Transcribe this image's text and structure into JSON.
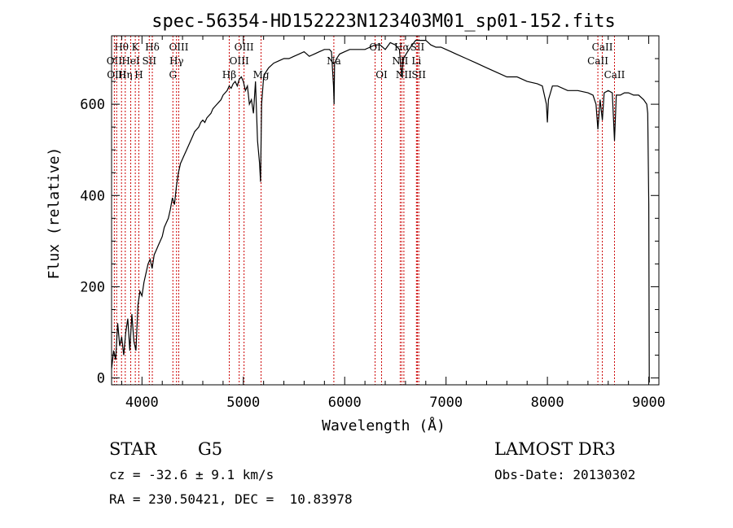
{
  "chart_data": {
    "type": "line",
    "title": "spec-56354-HD152223N123403M01_sp01-152.fits",
    "xlabel": "Wavelength (Å)",
    "ylabel": "Flux (relative)",
    "xlim": [
      3700,
      9100
    ],
    "ylim": [
      -15,
      750
    ],
    "xticks": [
      4000,
      5000,
      6000,
      7000,
      8000,
      9000
    ],
    "yticks": [
      0,
      200,
      400,
      600
    ],
    "line_color": "#000000",
    "marker_color": "#cc0000",
    "series": [
      {
        "x": [
          3700,
          3720,
          3740,
          3760,
          3780,
          3800,
          3820,
          3840,
          3860,
          3880,
          3900,
          3920,
          3940,
          3960,
          3980,
          4000,
          4020,
          4040,
          4060,
          4080,
          4100,
          4120,
          4140,
          4160,
          4180,
          4200,
          4220,
          4240,
          4260,
          4280,
          4300,
          4320,
          4340,
          4360,
          4380,
          4400,
          4420,
          4440,
          4460,
          4480,
          4500,
          4520,
          4540,
          4560,
          4580,
          4600,
          4620,
          4640,
          4660,
          4680,
          4700,
          4720,
          4740,
          4760,
          4780,
          4800,
          4820,
          4840,
          4860,
          4880,
          4900,
          4920,
          4940,
          4960,
          4980,
          5000,
          5020,
          5040,
          5060,
          5080,
          5100,
          5120,
          5140,
          5160,
          5170,
          5180,
          5200,
          5220,
          5250,
          5300,
          5350,
          5400,
          5450,
          5500,
          5550,
          5600,
          5650,
          5700,
          5750,
          5800,
          5850,
          5870,
          5890,
          5895,
          5900,
          5920,
          5950,
          6000,
          6050,
          6100,
          6150,
          6200,
          6250,
          6300,
          6350,
          6400,
          6450,
          6500,
          6540,
          6563,
          6580,
          6620,
          6650,
          6700,
          6750,
          6800,
          6850,
          6900,
          6950,
          7000,
          7050,
          7100,
          7200,
          7300,
          7400,
          7500,
          7600,
          7700,
          7800,
          7900,
          7950,
          7990,
          8000,
          8010,
          8050,
          8100,
          8200,
          8300,
          8400,
          8450,
          8480,
          8498,
          8520,
          8542,
          8560,
          8600,
          8640,
          8662,
          8680,
          8720,
          8760,
          8800,
          8850,
          8900,
          8950,
          8980,
          8990,
          9000,
          9005
        ],
        "y": [
          20,
          60,
          40,
          120,
          70,
          90,
          50,
          100,
          130,
          60,
          140,
          80,
          60,
          160,
          190,
          180,
          210,
          230,
          250,
          260,
          240,
          270,
          280,
          290,
          300,
          310,
          330,
          340,
          350,
          370,
          395,
          380,
          420,
          450,
          470,
          480,
          490,
          500,
          510,
          520,
          530,
          540,
          545,
          550,
          560,
          565,
          560,
          570,
          575,
          580,
          590,
          595,
          600,
          605,
          610,
          620,
          625,
          630,
          640,
          635,
          645,
          650,
          640,
          655,
          660,
          650,
          630,
          640,
          600,
          610,
          580,
          650,
          520,
          470,
          430,
          600,
          660,
          670,
          680,
          690,
          695,
          700,
          700,
          705,
          710,
          715,
          705,
          710,
          715,
          720,
          720,
          715,
          640,
          600,
          690,
          700,
          710,
          715,
          720,
          720,
          720,
          720,
          725,
          730,
          730,
          720,
          735,
          730,
          720,
          660,
          700,
          715,
          725,
          740,
          740,
          740,
          730,
          725,
          725,
          720,
          715,
          710,
          700,
          690,
          680,
          670,
          660,
          660,
          650,
          645,
          640,
          600,
          560,
          610,
          640,
          640,
          630,
          630,
          625,
          620,
          600,
          545,
          610,
          565,
          625,
          630,
          625,
          520,
          620,
          620,
          625,
          625,
          620,
          620,
          610,
          600,
          580,
          380,
          -10
        ]
      }
    ],
    "line_markers": [
      {
        "label": "Hθ",
        "x": 3798,
        "row": 1
      },
      {
        "label": "OII",
        "x": 3727,
        "row": 2
      },
      {
        "label": "OIII",
        "x": 3750,
        "row": 3
      },
      {
        "label": "HeI",
        "x": 3889,
        "row": 2
      },
      {
        "label": "Hη",
        "x": 3835,
        "row": 3
      },
      {
        "label": "K",
        "x": 3934,
        "row": 1
      },
      {
        "label": "H",
        "x": 3969,
        "row": 3
      },
      {
        "label": "SII",
        "x": 4072,
        "row": 2
      },
      {
        "label": "Hδ",
        "x": 4102,
        "row": 1
      },
      {
        "label": "OIII",
        "x": 4363,
        "row": 1
      },
      {
        "label": "Hγ",
        "x": 4341,
        "row": 2
      },
      {
        "label": "G",
        "x": 4305,
        "row": 3
      },
      {
        "label": "Hβ",
        "x": 4861,
        "row": 3
      },
      {
        "label": "OIII",
        "x": 5007,
        "row": 1
      },
      {
        "label": "OIII",
        "x": 4959,
        "row": 2
      },
      {
        "label": "Mg",
        "x": 5175,
        "row": 3
      },
      {
        "label": "Na",
        "x": 5893,
        "row": 2
      },
      {
        "label": "OI",
        "x": 6300,
        "row": 1
      },
      {
        "label": "OI",
        "x": 6364,
        "row": 3
      },
      {
        "label": "Hα",
        "x": 6563,
        "row": 1
      },
      {
        "label": "NII",
        "x": 6548,
        "row": 2
      },
      {
        "label": "NII",
        "x": 6584,
        "row": 3
      },
      {
        "label": "SII",
        "x": 6717,
        "row": 1
      },
      {
        "label": "Li",
        "x": 6708,
        "row": 2
      },
      {
        "label": "SII",
        "x": 6731,
        "row": 3
      },
      {
        "label": "CaII",
        "x": 8542,
        "row": 1
      },
      {
        "label": "CaII",
        "x": 8498,
        "row": 2
      },
      {
        "label": "CaII",
        "x": 8662,
        "row": 3
      }
    ],
    "grid": false,
    "legend": "none"
  },
  "info": {
    "object_type": "STAR",
    "subclass": "G5",
    "survey": "LAMOST DR3",
    "cz": "cz = -32.6 ± 9.1 km/s",
    "obs_date": "Obs-Date: 20130302",
    "coords": "RA = 230.50421, DEC =  10.83978"
  }
}
